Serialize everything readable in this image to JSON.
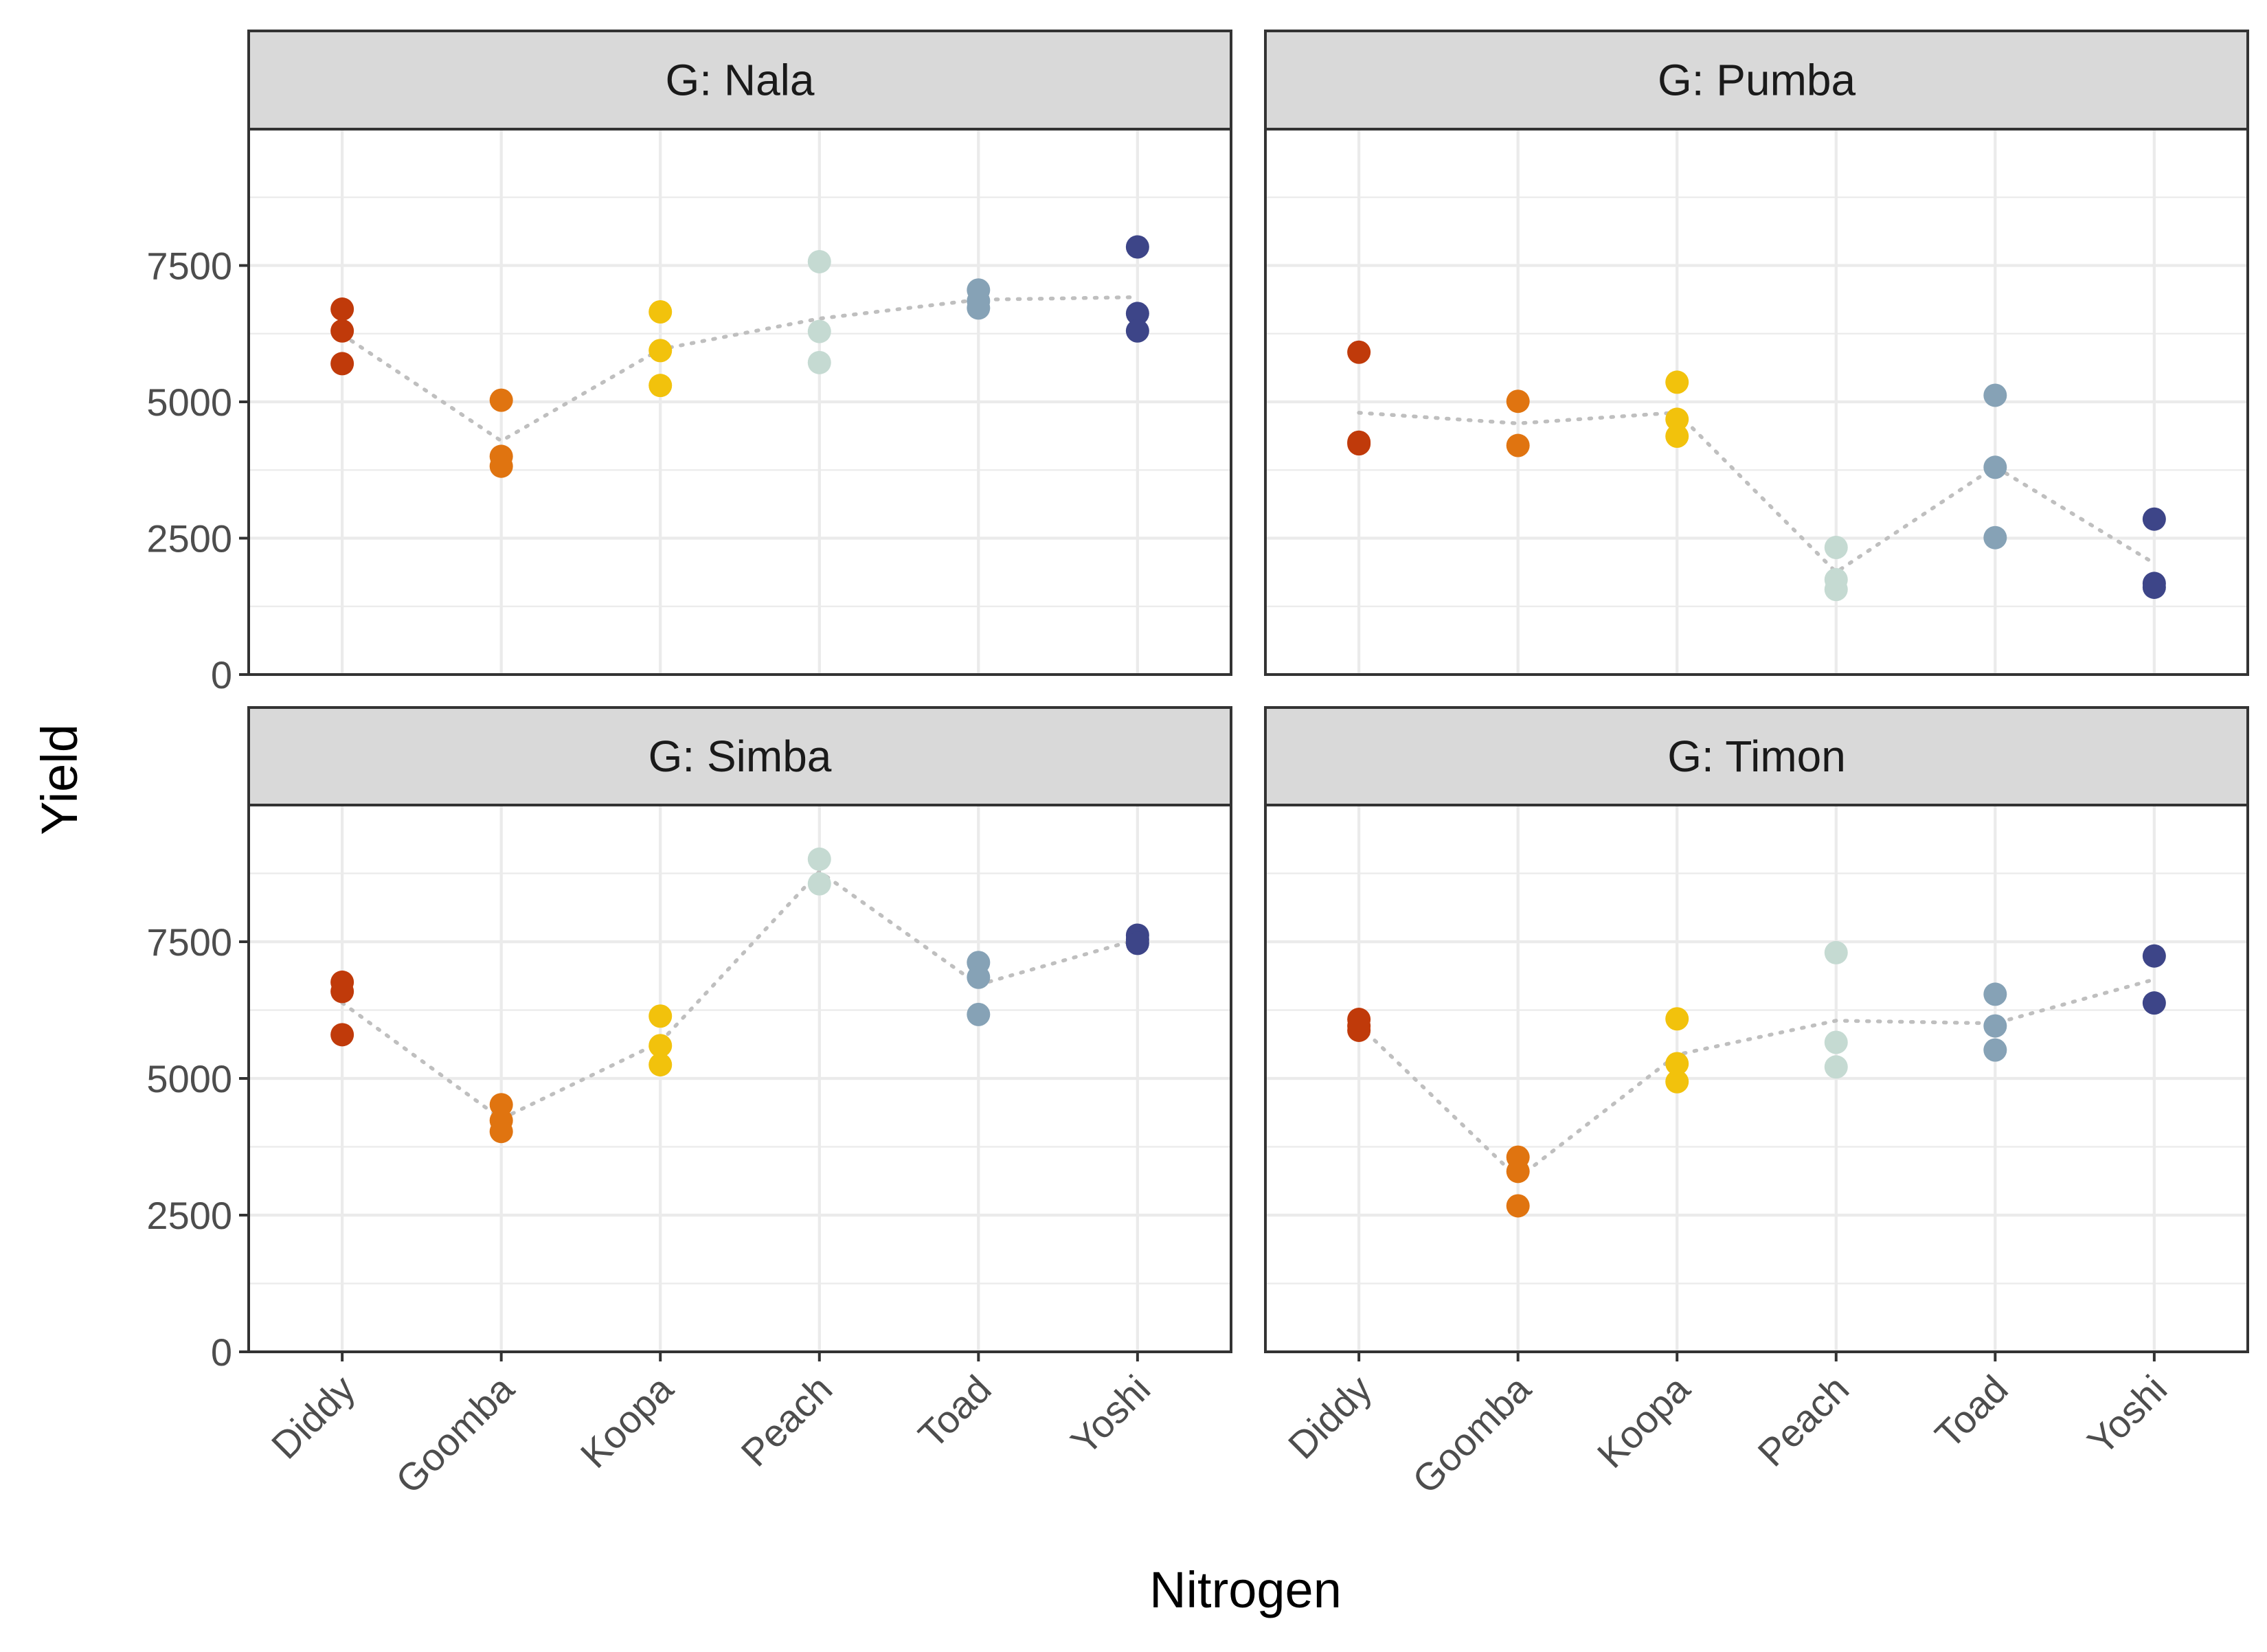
{
  "chart_data": {
    "type": "scatter",
    "xlabel": "Nitrogen",
    "ylabel": "Yield",
    "facet_prefix": "G: ",
    "categories": [
      "Diddy",
      "Goomba",
      "Koopa",
      "Peach",
      "Toad",
      "Yoshi"
    ],
    "ylim": [
      0,
      10000
    ],
    "yticks": [
      0,
      2500,
      5000,
      7500
    ],
    "grid": true,
    "legend": "none",
    "colors": {
      "Diddy": "#c03a0a",
      "Goomba": "#e07410",
      "Koopa": "#f2c20c",
      "Peach": "#c5dad2",
      "Toad": "#86a2b6",
      "Yoshi": "#3d4588",
      "trend": "#bfbfbf"
    },
    "panels": [
      {
        "name": "Nala",
        "label": "G: Nala",
        "points": {
          "Diddy": [
            6700,
            6300,
            5700
          ],
          "Goomba": [
            5030,
            4000,
            3820
          ],
          "Koopa": [
            6650,
            5940,
            5300
          ],
          "Peach": [
            7570,
            6290,
            5720
          ],
          "Toad": [
            7050,
            6850,
            6720
          ],
          "Yoshi": [
            7840,
            6620,
            6300
          ]
        },
        "means": [
          6233,
          4283,
          5963,
          6527,
          6873,
          6920
        ]
      },
      {
        "name": "Pumba",
        "label": "G: Pumba",
        "points": {
          "Diddy": [
            5910,
            4260,
            4230
          ],
          "Goomba": [
            5010,
            4200
          ],
          "Koopa": [
            5360,
            4680,
            4370
          ],
          "Peach": [
            2330,
            1740,
            1560
          ],
          "Toad": [
            5120,
            3800,
            2510
          ],
          "Yoshi": [
            2850,
            1670,
            1600
          ]
        },
        "means": [
          4800,
          4605,
          4803,
          1877,
          3810,
          2040
        ]
      },
      {
        "name": "Simba",
        "label": "G: Simba",
        "points": {
          "Diddy": [
            6760,
            6590,
            5800
          ],
          "Goomba": [
            4520,
            4230,
            4030
          ],
          "Koopa": [
            6140,
            5600,
            5250
          ],
          "Peach": [
            9010,
            8560
          ],
          "Toad": [
            7120,
            6850,
            6170
          ],
          "Yoshi": [
            7620,
            7540,
            7470
          ]
        },
        "means": [
          6383,
          4260,
          5663,
          8785,
          6713,
          7543
        ]
      },
      {
        "name": "Timon",
        "label": "G: Timon",
        "points": {
          "Diddy": [
            6080,
            5960,
            5880
          ],
          "Goomba": [
            3560,
            3300,
            2670
          ],
          "Koopa": [
            6090,
            5270,
            4940
          ],
          "Peach": [
            7300,
            5660,
            5210
          ],
          "Toad": [
            6540,
            5960,
            5520
          ],
          "Yoshi": [
            7240,
            6380
          ]
        },
        "means": [
          5973,
          3177,
          5433,
          6057,
          6007,
          6810
        ]
      }
    ]
  }
}
